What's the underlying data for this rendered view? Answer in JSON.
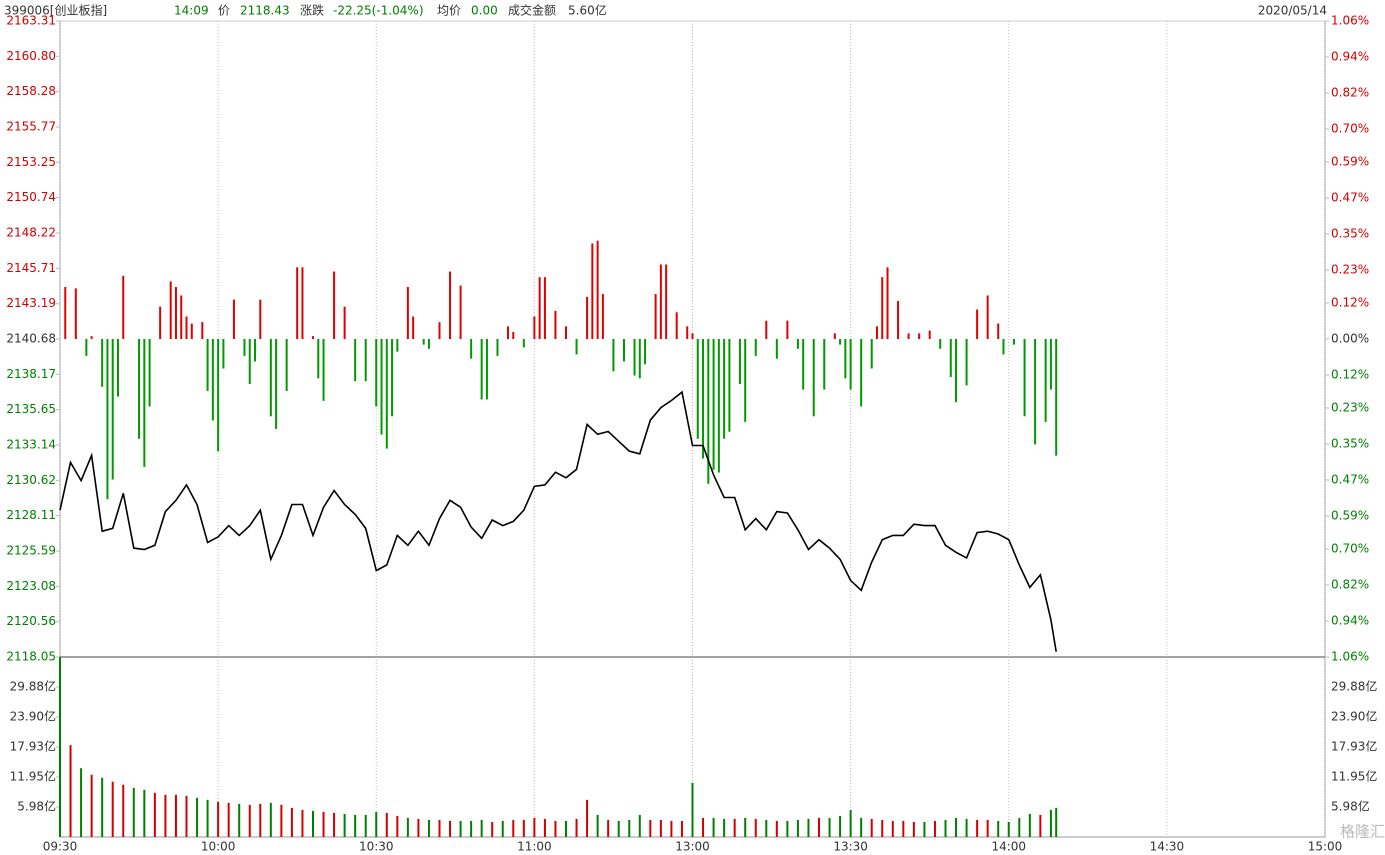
{
  "header": {
    "symbol": "399006[创业板指]",
    "time": "14:09",
    "price_label": "价",
    "price": "2118.43",
    "change_label": "涨跌",
    "change": "-22.25(-1.04%)",
    "avg_label": "均价",
    "avg": "0.00",
    "amount_label": "成交金额",
    "amount": "5.60亿",
    "date": "2020/05/14"
  },
  "watermark": "格隆汇",
  "chart_data": [
    {
      "type": "line",
      "color": "#000000",
      "up_color": "#d40000",
      "down_color": "#008000",
      "xlim": [
        0,
        240
      ],
      "xticks": [
        {
          "value": 0,
          "label": "09:30"
        },
        {
          "value": 30,
          "label": "10:00"
        },
        {
          "value": 60,
          "label": "10:30"
        },
        {
          "value": 90,
          "label": "11:00"
        },
        {
          "value": 120,
          "label": "13:00"
        },
        {
          "value": 150,
          "label": "13:30"
        },
        {
          "value": 180,
          "label": "14:00"
        },
        {
          "value": 210,
          "label": "14:30"
        },
        {
          "value": 240,
          "label": "15:00"
        }
      ],
      "ylim": [
        2118.05,
        2163.31
      ],
      "yticks": [
        2163.31,
        {
          "value": 2160.8,
          "label": "2160.80"
        },
        2158.28,
        2155.77,
        2153.25,
        2150.74,
        2148.22,
        2145.71,
        2143.19,
        2140.68,
        2138.17,
        2135.65,
        2133.14,
        2130.62,
        2128.11,
        2125.59,
        2123.08,
        2120.56,
        2118.05
      ],
      "y2lim": [
        -1.06,
        1.06
      ],
      "y2ticks": [
        {
          "value": 1.06,
          "label": "1.06%"
        },
        {
          "value": 0.94,
          "label": "0.94%"
        },
        {
          "value": 0.82,
          "label": "0.82%"
        },
        {
          "value": 0.7,
          "label": "0.70%"
        },
        {
          "value": 0.59,
          "label": "0.59%"
        },
        {
          "value": 0.47,
          "label": "0.47%"
        },
        {
          "value": 0.35,
          "label": "0.35%"
        },
        {
          "value": 0.23,
          "label": "0.23%"
        },
        {
          "value": 0.12,
          "label": "0.12%"
        },
        {
          "value": 0,
          "label": "0.00%"
        },
        {
          "value": -0.12,
          "label": "0.12%"
        },
        {
          "value": -0.23,
          "label": "0.23%"
        },
        {
          "value": -0.35,
          "label": "0.35%"
        },
        {
          "value": -0.47,
          "label": "0.47%"
        },
        {
          "value": -0.59,
          "label": "0.59%"
        },
        {
          "value": -0.7,
          "label": "0.70%"
        },
        {
          "value": -0.82,
          "label": "0.82%"
        },
        {
          "value": -0.94,
          "label": "0.94%"
        },
        {
          "value": -1.06,
          "label": "1.06%"
        }
      ],
      "x": [
        0,
        2,
        4,
        6,
        8,
        10,
        12,
        14,
        16,
        18,
        20,
        22,
        24,
        26,
        28,
        30,
        32,
        34,
        36,
        38,
        40,
        42,
        44,
        46,
        48,
        50,
        52,
        54,
        56,
        58,
        60,
        62,
        64,
        66,
        68,
        70,
        72,
        74,
        76,
        78,
        80,
        82,
        84,
        86,
        88,
        90,
        92,
        94,
        96,
        98,
        100,
        102,
        104,
        106,
        108,
        110,
        112,
        114,
        116,
        118,
        120,
        122,
        124,
        126,
        128,
        130,
        132,
        134,
        136,
        138,
        140,
        142,
        144,
        146,
        148,
        150,
        152,
        154,
        156,
        158,
        160,
        162,
        164,
        166,
        168,
        170,
        172,
        174,
        176,
        178,
        180,
        182,
        184,
        186,
        188,
        189
      ],
      "values": [
        2128.5,
        2131.9,
        2130.6,
        2132.4,
        2127.0,
        2127.2,
        2129.7,
        2125.8,
        2125.7,
        2126.0,
        2128.4,
        2129.2,
        2130.3,
        2128.9,
        2126.2,
        2126.6,
        2127.4,
        2126.7,
        2127.4,
        2128.5,
        2125.0,
        2126.7,
        2128.9,
        2128.9,
        2126.7,
        2128.7,
        2129.9,
        2128.9,
        2128.2,
        2127.2,
        2124.2,
        2124.6,
        2126.7,
        2126.0,
        2127.0,
        2126.0,
        2127.9,
        2129.2,
        2128.7,
        2127.3,
        2126.5,
        2127.8,
        2127.4,
        2127.7,
        2128.5,
        2130.2,
        2130.3,
        2131.2,
        2130.8,
        2131.4,
        2134.6,
        2133.9,
        2134.1,
        2133.4,
        2132.7,
        2132.5,
        2134.9,
        2135.8,
        2136.3,
        2136.9,
        2133.1,
        2133.1,
        2131.0,
        2129.4,
        2129.4,
        2127.1,
        2127.9,
        2127.1,
        2128.4,
        2128.3,
        2127.1,
        2125.7,
        2126.4,
        2125.8,
        2125.0,
        2123.5,
        2122.8,
        2124.8,
        2126.4,
        2126.7,
        2126.7,
        2127.5,
        2127.4,
        2127.4,
        2126.0,
        2125.5,
        2125.1,
        2126.9,
        2127.0,
        2126.8,
        2126.4,
        2124.6,
        2123.0,
        2123.9,
        2120.7,
        2118.43
      ]
    },
    {
      "type": "bar",
      "color_by": "sign",
      "up_color": "#e00000",
      "down_color": "#009900",
      "x": [
        1,
        3,
        5,
        6,
        8,
        9,
        10,
        11,
        12,
        15,
        16,
        17,
        19,
        21,
        22,
        23,
        24,
        25,
        27,
        28,
        29,
        30,
        31,
        33,
        35,
        36,
        37,
        38,
        40,
        41,
        43,
        45,
        46,
        48,
        49,
        50,
        52,
        54,
        56,
        58,
        60,
        61,
        62,
        63,
        64,
        66,
        67,
        69,
        70,
        72,
        74,
        76,
        78,
        80,
        81,
        83,
        85,
        86,
        88,
        90,
        91,
        92,
        94,
        96,
        98,
        100,
        101,
        102,
        103,
        105,
        107,
        109,
        110,
        111,
        113,
        114,
        115,
        117,
        119,
        120,
        121,
        122,
        123,
        124,
        125,
        126,
        127,
        129,
        130,
        132,
        134,
        136,
        138,
        140,
        141,
        143,
        145,
        147,
        148,
        149,
        150,
        152,
        154,
        155,
        156,
        157,
        159,
        161,
        163,
        165,
        167,
        169,
        170,
        172,
        174,
        176,
        178,
        179,
        181,
        183,
        185,
        187,
        188,
        189
      ],
      "values": [
        3.7,
        3.6,
        -1.2,
        0.2,
        -3.4,
        -11.4,
        -10.0,
        -4.1,
        4.5,
        -7.1,
        -9.1,
        -4.8,
        2.3,
        4.1,
        3.7,
        3.1,
        1.6,
        1.1,
        1.2,
        -3.7,
        -5.8,
        -8.0,
        -2.1,
        2.8,
        -1.2,
        -3.2,
        -1.6,
        2.8,
        -5.5,
        -6.4,
        -3.7,
        5.1,
        5.1,
        0.2,
        -2.8,
        -4.4,
        4.8,
        2.3,
        -3.0,
        -3.0,
        -4.8,
        -6.8,
        -7.8,
        -5.5,
        -0.9,
        3.7,
        1.6,
        -0.4,
        -0.7,
        1.2,
        4.8,
        3.8,
        -1.4,
        -4.3,
        -4.3,
        -1.2,
        0.9,
        0.5,
        -0.6,
        1.6,
        4.4,
        4.4,
        2.0,
        0.9,
        -1.1,
        3.0,
        6.8,
        7.0,
        3.2,
        -2.3,
        -1.6,
        -2.6,
        -2.8,
        -1.8,
        3.2,
        5.3,
        5.3,
        1.9,
        0.9,
        0.4,
        -7.1,
        -8.5,
        -10.3,
        -9.3,
        -9.5,
        -7.1,
        -6.6,
        -3.2,
        -5.9,
        -1.2,
        1.3,
        -1.4,
        1.3,
        -0.7,
        -3.6,
        -5.5,
        -3.6,
        0.4,
        -0.4,
        -2.8,
        -3.6,
        -4.8,
        -2.1,
        0.9,
        4.4,
        5.1,
        2.7,
        0.4,
        0.4,
        0.6,
        -0.7,
        -2.7,
        -4.5,
        -3.3,
        2.1,
        3.1,
        1.1,
        -1.1,
        -0.4,
        -5.5,
        -7.5,
        -5.9,
        -3.6,
        -8.3
      ]
    },
    {
      "type": "bar",
      "color_by": "price_change",
      "up_color": "#d40000",
      "down_color": "#008000",
      "ylim": [
        0,
        35.85
      ],
      "yticks": [
        {
          "value": 29.88,
          "label": "29.88亿"
        },
        {
          "value": 23.9,
          "label": "23.90亿"
        },
        {
          "value": 17.93,
          "label": "17.93亿"
        },
        {
          "value": 11.95,
          "label": "11.95亿"
        },
        {
          "value": 5.98,
          "label": "5.98亿"
        }
      ],
      "x": [
        0,
        2,
        4,
        6,
        8,
        10,
        12,
        14,
        16,
        18,
        20,
        22,
        24,
        26,
        28,
        30,
        32,
        34,
        36,
        38,
        40,
        42,
        44,
        46,
        48,
        50,
        52,
        54,
        56,
        58,
        60,
        62,
        64,
        66,
        68,
        70,
        72,
        74,
        76,
        78,
        80,
        82,
        84,
        86,
        88,
        90,
        92,
        94,
        96,
        98,
        100,
        102,
        104,
        106,
        108,
        110,
        112,
        114,
        116,
        118,
        120,
        122,
        124,
        126,
        128,
        130,
        132,
        134,
        136,
        138,
        140,
        142,
        144,
        146,
        148,
        150,
        152,
        154,
        156,
        158,
        160,
        162,
        164,
        166,
        168,
        170,
        172,
        174,
        176,
        178,
        180,
        182,
        184,
        186,
        188,
        189
      ],
      "values": [
        35.8,
        18.3,
        13.7,
        12.4,
        11.8,
        11.0,
        10.4,
        9.8,
        9.4,
        8.8,
        8.4,
        8.4,
        8.2,
        7.8,
        7.4,
        7.0,
        6.8,
        6.6,
        6.4,
        6.6,
        6.8,
        6.4,
        5.8,
        5.4,
        5.2,
        5.0,
        4.8,
        4.6,
        4.4,
        4.4,
        5.0,
        4.8,
        4.2,
        3.8,
        3.6,
        3.4,
        3.4,
        3.2,
        3.2,
        3.2,
        3.4,
        3.0,
        3.2,
        3.4,
        3.4,
        3.8,
        3.6,
        3.2,
        3.2,
        3.6,
        7.4,
        4.4,
        3.4,
        3.2,
        3.4,
        4.4,
        3.4,
        3.4,
        3.2,
        3.2,
        10.8,
        3.8,
        3.8,
        3.6,
        3.6,
        3.8,
        3.6,
        3.4,
        3.2,
        3.2,
        3.4,
        3.6,
        3.8,
        3.8,
        4.2,
        5.4,
        3.8,
        3.6,
        3.4,
        3.2,
        3.2,
        3.0,
        3.0,
        3.2,
        3.4,
        3.8,
        3.6,
        3.4,
        3.4,
        3.2,
        3.0,
        3.8,
        4.6,
        4.4,
        5.4,
        5.8
      ]
    }
  ]
}
